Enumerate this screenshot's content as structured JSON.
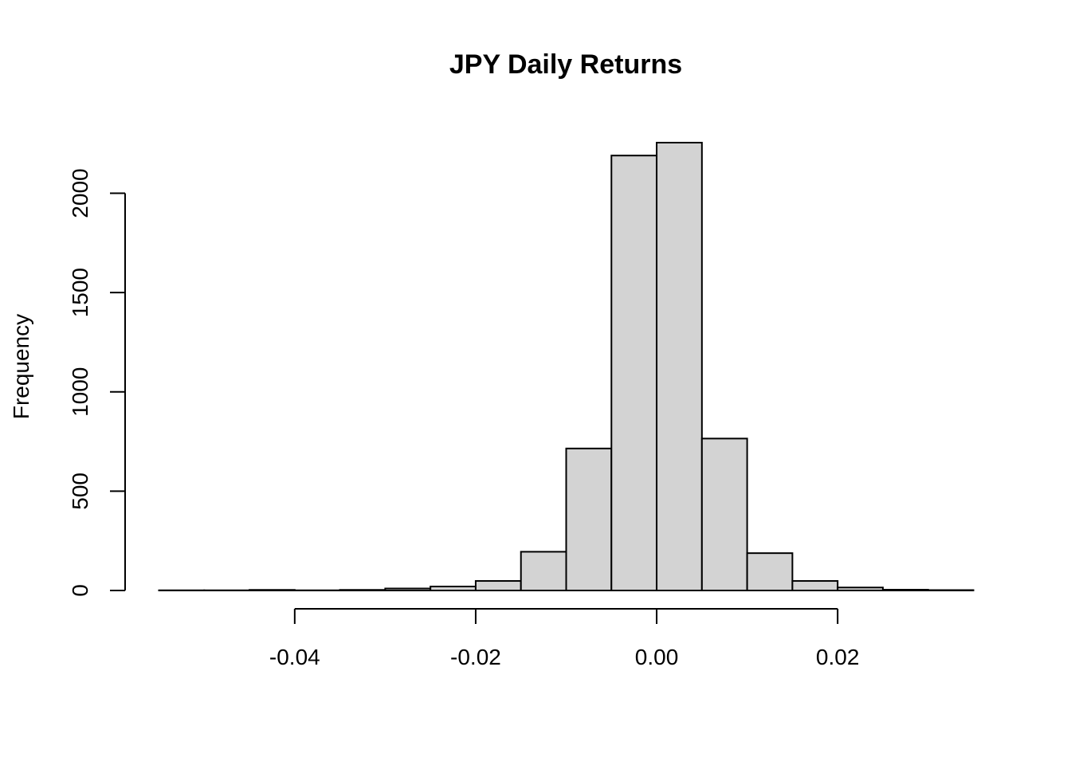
{
  "chart_data": {
    "type": "bar",
    "title": "JPY Daily Returns",
    "xlabel": "",
    "ylabel": "Frequency",
    "bin_edges": [
      -0.055,
      -0.05,
      -0.045,
      -0.04,
      -0.035,
      -0.03,
      -0.025,
      -0.02,
      -0.015,
      -0.01,
      -0.005,
      0.0,
      0.005,
      0.01,
      0.015,
      0.02,
      0.025,
      0.03,
      0.035
    ],
    "values": [
      1,
      1,
      3,
      1,
      3,
      10,
      20,
      48,
      195,
      715,
      2190,
      2255,
      765,
      188,
      48,
      15,
      4,
      2
    ],
    "xlim": [
      -0.055,
      0.035
    ],
    "ylim": [
      0,
      2255
    ],
    "x_ticks": [
      -0.04,
      -0.02,
      0.0,
      0.02
    ],
    "x_tick_labels": [
      "-0.04",
      "-0.02",
      "0.00",
      "0.02"
    ],
    "y_ticks": [
      0,
      500,
      1000,
      1500,
      2000
    ],
    "y_tick_labels": [
      "0",
      "500",
      "1000",
      "1500",
      "2000"
    ],
    "grid": false,
    "legend": "none"
  }
}
